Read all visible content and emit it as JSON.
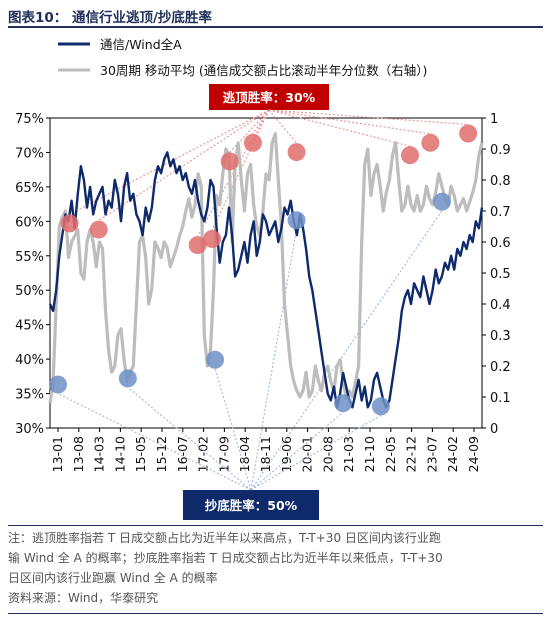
{
  "figure": {
    "label": "图表10：",
    "title": "通信行业逃顶/抄底胜率"
  },
  "annotations": {
    "top_box": "逃顶胜率：30%",
    "bottom_box": "抄底胜率：50%"
  },
  "notes": {
    "line1": "注：逃顶胜率指若 T 日成交额占比为近半年以来高点，T-T+30 日区间内该行业跑",
    "line2": "输 Wind 全 A 的概率；抄底胜率指若 T 日成交额占比为近半年以来低点，T-T+30",
    "line3": "日区间内该行业跑赢 Wind 全 A 的概率",
    "source": "资料来源：Wind，华泰研究"
  },
  "colors": {
    "navy": "#0e2a6b",
    "gray": "#bdbdbd",
    "red_box": "#c00000",
    "blue_box": "#0e2a6b",
    "red_marker": "#e06c6c",
    "blue_marker": "#6f8fc7"
  },
  "chart_data": {
    "type": "line",
    "x_tick_labels": [
      "13-01",
      "13-08",
      "14-03",
      "14-10",
      "15-05",
      "15-12",
      "16-07",
      "17-02",
      "17-09",
      "18-04",
      "18-11",
      "19-06",
      "20-01",
      "20-08",
      "21-03",
      "21-10",
      "22-05",
      "22-12",
      "23-07",
      "24-02",
      "24-09"
    ],
    "y_left": {
      "ticks": [
        "30%",
        "35%",
        "40%",
        "45%",
        "50%",
        "55%",
        "60%",
        "65%",
        "70%",
        "75%"
      ],
      "ylim": [
        0.3,
        0.75
      ]
    },
    "y_right": {
      "ticks": [
        "0",
        "0.1",
        "0.2",
        "0.3",
        "0.4",
        "0.5",
        "0.6",
        "0.7",
        "0.8",
        "0.9",
        "1"
      ],
      "ylim": [
        0,
        1
      ]
    },
    "series": [
      {
        "name": "通信/Wind全A",
        "axis": "left",
        "x": [
          0,
          1,
          2,
          3,
          4,
          5,
          6,
          7,
          8,
          9,
          10,
          11,
          12,
          13,
          14,
          15,
          16,
          17,
          18,
          19,
          20,
          21,
          22,
          23,
          24,
          25,
          26,
          27,
          28,
          29,
          30,
          31,
          32,
          33,
          34,
          35,
          36,
          37,
          38,
          39,
          40,
          41,
          42,
          43,
          44,
          45,
          46,
          47,
          48,
          49,
          50,
          51,
          52,
          53,
          54,
          55,
          56,
          57,
          58,
          59,
          60,
          61,
          62,
          63,
          64,
          65,
          66,
          67,
          68,
          69,
          70,
          71,
          72,
          73,
          74,
          75,
          76,
          77,
          78,
          79,
          80,
          81,
          82,
          83,
          84,
          85,
          86,
          87,
          88,
          89,
          90,
          91,
          92,
          93,
          94,
          95,
          96,
          97,
          98,
          99,
          100,
          101,
          102,
          103,
          104,
          105,
          106,
          107,
          108,
          109,
          110,
          111,
          112,
          113,
          114,
          115,
          116,
          117,
          118,
          119,
          120,
          121,
          122,
          123,
          124,
          125,
          126,
          127,
          128,
          129,
          130,
          131,
          132,
          133,
          134,
          135,
          136,
          137,
          138,
          139,
          140
        ],
        "y": [
          0.48,
          0.47,
          0.5,
          0.55,
          0.58,
          0.61,
          0.6,
          0.63,
          0.59,
          0.64,
          0.68,
          0.66,
          0.62,
          0.65,
          0.61,
          0.63,
          0.64,
          0.65,
          0.61,
          0.63,
          0.62,
          0.66,
          0.64,
          0.6,
          0.65,
          0.67,
          0.63,
          0.64,
          0.61,
          0.6,
          0.58,
          0.62,
          0.6,
          0.62,
          0.66,
          0.68,
          0.67,
          0.69,
          0.7,
          0.68,
          0.69,
          0.67,
          0.68,
          0.66,
          0.67,
          0.65,
          0.64,
          0.66,
          0.63,
          0.61,
          0.6,
          0.62,
          0.66,
          0.65,
          0.59,
          0.54,
          0.57,
          0.58,
          0.62,
          0.58,
          0.52,
          0.53,
          0.55,
          0.57,
          0.54,
          0.58,
          0.6,
          0.55,
          0.57,
          0.61,
          0.6,
          0.58,
          0.59,
          0.6,
          0.57,
          0.59,
          0.62,
          0.61,
          0.63,
          0.6,
          0.58,
          0.61,
          0.59,
          0.56,
          0.52,
          0.5,
          0.47,
          0.44,
          0.41,
          0.38,
          0.35,
          0.34,
          0.36,
          0.33,
          0.35,
          0.38,
          0.36,
          0.34,
          0.33,
          0.35,
          0.37,
          0.34,
          0.36,
          0.33,
          0.34,
          0.37,
          0.38,
          0.36,
          0.34,
          0.33,
          0.34,
          0.37,
          0.4,
          0.43,
          0.47,
          0.49,
          0.5,
          0.48,
          0.51,
          0.5,
          0.49,
          0.52,
          0.5,
          0.48,
          0.5,
          0.53,
          0.51,
          0.52,
          0.54,
          0.53,
          0.55,
          0.53,
          0.56,
          0.55,
          0.57,
          0.56,
          0.58,
          0.57,
          0.6,
          0.59,
          0.62
        ]
      },
      {
        "name": "30周期 移动平均 (通信成交额占比滚动半年分位数（右轴）)",
        "axis": "right",
        "x": [
          0,
          1,
          2,
          3,
          4,
          5,
          6,
          7,
          8,
          9,
          10,
          11,
          12,
          13,
          14,
          15,
          16,
          17,
          18,
          19,
          20,
          21,
          22,
          23,
          24,
          25,
          26,
          27,
          28,
          29,
          30,
          31,
          32,
          33,
          34,
          35,
          36,
          37,
          38,
          39,
          40,
          41,
          42,
          43,
          44,
          45,
          46,
          47,
          48,
          49,
          50,
          51,
          52,
          53,
          54,
          55,
          56,
          57,
          58,
          59,
          60,
          61,
          62,
          63,
          64,
          65,
          66,
          67,
          68,
          69,
          70,
          71,
          72,
          73,
          74,
          75,
          76,
          77,
          78,
          79,
          80,
          81,
          82,
          83,
          84,
          85,
          86,
          87,
          88,
          89,
          90,
          91,
          92,
          93,
          94,
          95,
          96,
          97,
          98,
          99,
          100,
          101,
          102,
          103,
          104,
          105,
          106,
          107,
          108,
          109,
          110,
          111,
          112,
          113,
          114,
          115,
          116,
          117,
          118,
          119,
          120,
          121,
          122,
          123,
          124,
          125,
          126,
          127,
          128,
          129,
          130,
          131,
          132,
          133,
          134,
          135,
          136,
          137,
          138,
          139,
          140
        ],
        "y": [
          0.08,
          0.15,
          0.4,
          0.65,
          0.68,
          0.7,
          0.55,
          0.6,
          0.62,
          0.64,
          0.5,
          0.48,
          0.6,
          0.64,
          0.6,
          0.52,
          0.6,
          0.58,
          0.38,
          0.25,
          0.18,
          0.2,
          0.3,
          0.32,
          0.22,
          0.15,
          0.18,
          0.2,
          0.4,
          0.6,
          0.62,
          0.55,
          0.4,
          0.45,
          0.6,
          0.58,
          0.55,
          0.6,
          0.58,
          0.52,
          0.55,
          0.58,
          0.62,
          0.65,
          0.7,
          0.74,
          0.68,
          0.72,
          0.82,
          0.78,
          0.3,
          0.2,
          0.25,
          0.45,
          0.75,
          0.72,
          0.82,
          0.9,
          0.88,
          0.6,
          0.85,
          0.92,
          0.8,
          0.7,
          0.82,
          0.85,
          0.72,
          0.65,
          0.62,
          0.7,
          0.82,
          0.8,
          0.92,
          0.95,
          0.8,
          0.65,
          0.4,
          0.3,
          0.2,
          0.15,
          0.12,
          0.1,
          0.12,
          0.18,
          0.1,
          0.12,
          0.2,
          0.15,
          0.12,
          0.18,
          0.2,
          0.15,
          0.12,
          0.2,
          0.22,
          0.15,
          0.1,
          0.12,
          0.1,
          0.15,
          0.2,
          0.6,
          0.85,
          0.9,
          0.75,
          0.82,
          0.85,
          0.78,
          0.7,
          0.76,
          0.8,
          0.88,
          0.92,
          0.8,
          0.7,
          0.72,
          0.78,
          0.72,
          0.7,
          0.75,
          0.7,
          0.72,
          0.78,
          0.74,
          0.72,
          0.76,
          0.82,
          0.78,
          0.74,
          0.72,
          0.78,
          0.75,
          0.7,
          0.72,
          0.74,
          0.7,
          0.73,
          0.76,
          0.8,
          0.88,
          0.92
        ],
        "smoothing": "30-period moving average"
      }
    ],
    "escape_top_markers_right_axis": [
      {
        "date": "13-05",
        "value": 0.66
      },
      {
        "date": "14-03",
        "value": 0.64
      },
      {
        "date": "17-01",
        "value": 0.59
      },
      {
        "date": "17-06",
        "value": 0.61
      },
      {
        "date": "17-12",
        "value": 0.86
      },
      {
        "date": "18-08",
        "value": 0.92
      },
      {
        "date": "19-11",
        "value": 0.89
      },
      {
        "date": "23-02",
        "value": 0.88
      },
      {
        "date": "23-09",
        "value": 0.92
      },
      {
        "date": "24-10",
        "value": 0.95
      }
    ],
    "bottom_fish_markers_right_axis": [
      {
        "date": "13-01",
        "value": 0.14
      },
      {
        "date": "15-01",
        "value": 0.16
      },
      {
        "date": "17-07",
        "value": 0.22
      },
      {
        "date": "19-11",
        "value": 0.67
      },
      {
        "date": "21-03",
        "value": 0.08
      },
      {
        "date": "22-04",
        "value": 0.07
      },
      {
        "date": "24-01",
        "value": 0.73
      }
    ]
  },
  "legend": {
    "series_1": "通信/Wind全A",
    "series_2": "30周期 移动平均 (通信成交额占比滚动半年分位数（右轴）)"
  }
}
